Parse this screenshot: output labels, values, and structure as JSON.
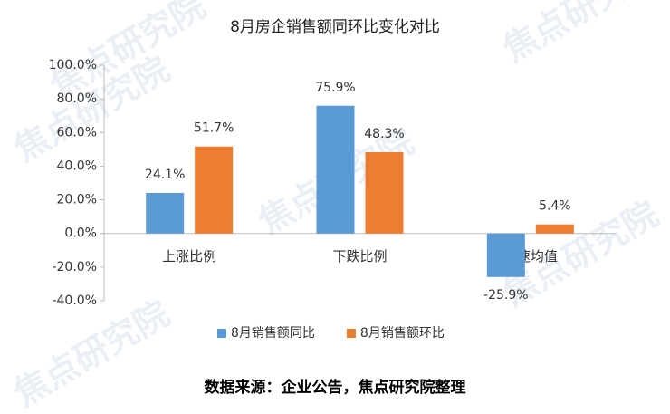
{
  "chart_data": {
    "type": "bar",
    "title": "8月房企销售额同环比变化对比",
    "categories": [
      "上涨比例",
      "下跌比例",
      "增速均值"
    ],
    "series": [
      {
        "name": "8月销售额同比",
        "color": "#5b9bd5",
        "values": [
          24.1,
          75.9,
          -25.9
        ],
        "value_labels": [
          "24.1%",
          "75.9%",
          "-25.9%"
        ]
      },
      {
        "name": "8月销售额环比",
        "color": "#ed7d31",
        "values": [
          51.7,
          48.3,
          5.4
        ],
        "value_labels": [
          "51.7%",
          "48.3%",
          "5.4%"
        ]
      }
    ],
    "ylim": [
      -40,
      100
    ],
    "yticks": [
      {
        "value": -40,
        "label": "-40.0%"
      },
      {
        "value": -20,
        "label": "-20.0%"
      },
      {
        "value": 0,
        "label": "0.0%"
      },
      {
        "value": 20,
        "label": "20.0%"
      },
      {
        "value": 40,
        "label": "40.0%"
      },
      {
        "value": 60,
        "label": "60.0%"
      },
      {
        "value": 80,
        "label": "80.0%"
      },
      {
        "value": 100,
        "label": "100.0%"
      }
    ],
    "legend": "bottom",
    "source": "数据来源：企业公告，焦点研究院整理",
    "watermark": "焦点研究院"
  }
}
